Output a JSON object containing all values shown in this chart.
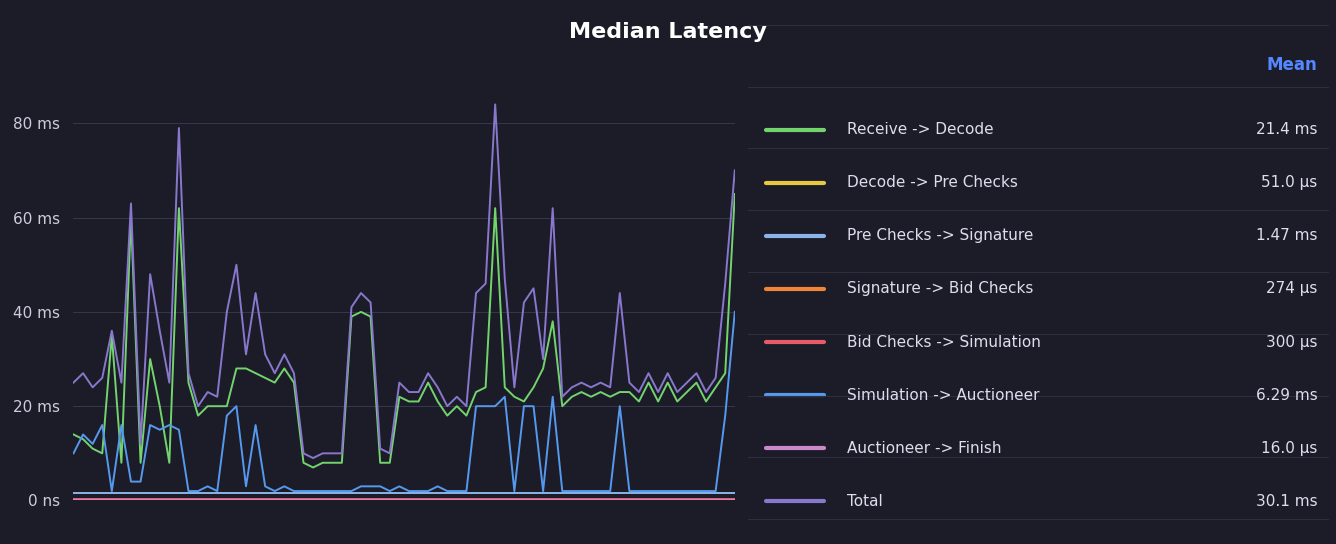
{
  "title": "Median Latency",
  "background_color": "#1c1c28",
  "plot_bg_color": "#1c1c28",
  "legend_bg_color": "#22222e",
  "title_color": "#ffffff",
  "grid_color": "#3a3a52",
  "tick_label_color": "#ccccdd",
  "mean_label_color": "#5588ff",
  "legend_text_color": "#ddddee",
  "legend_row_sep_color": "#2e2e3e",
  "ylim": [
    0,
    90
  ],
  "yticks": [
    0,
    20,
    40,
    60,
    80
  ],
  "ytick_labels": [
    "0 ns",
    "20 ms",
    "40 ms",
    "60 ms",
    "80 ms"
  ],
  "n_xgrid": 5,
  "series": [
    {
      "label": "Receive -> Decode",
      "mean": "21.4 ms",
      "color": "#73d46e",
      "linewidth": 1.4,
      "values": [
        14,
        13,
        11,
        10,
        35,
        8,
        60,
        8,
        30,
        20,
        8,
        62,
        25,
        18,
        20,
        20,
        20,
        28,
        28,
        27,
        26,
        25,
        28,
        25,
        8,
        7,
        8,
        8,
        8,
        39,
        40,
        39,
        8,
        8,
        22,
        21,
        21,
        25,
        21,
        18,
        20,
        18,
        23,
        24,
        62,
        24,
        22,
        21,
        24,
        28,
        38,
        20,
        22,
        23,
        22,
        23,
        22,
        23,
        23,
        21,
        25,
        21,
        25,
        21,
        23,
        25,
        21,
        24,
        27,
        65
      ]
    },
    {
      "label": "Decode -> Pre Checks",
      "mean": "51.0 μs",
      "color": "#e8c840",
      "linewidth": 1.4,
      "values": [
        0.05,
        0.05,
        0.05,
        0.05,
        0.05,
        0.05,
        0.05,
        0.05,
        0.05,
        0.05,
        0.05,
        0.05,
        0.05,
        0.05,
        0.05,
        0.05,
        0.05,
        0.05,
        0.05,
        0.05,
        0.05,
        0.05,
        0.05,
        0.05,
        0.05,
        0.05,
        0.05,
        0.05,
        0.05,
        0.05,
        0.05,
        0.05,
        0.05,
        0.05,
        0.05,
        0.05,
        0.05,
        0.05,
        0.05,
        0.05,
        0.05,
        0.05,
        0.05,
        0.05,
        0.05,
        0.05,
        0.05,
        0.05,
        0.05,
        0.05,
        0.05,
        0.05,
        0.05,
        0.05,
        0.05,
        0.05,
        0.05,
        0.05,
        0.05,
        0.05,
        0.05,
        0.05,
        0.05,
        0.05,
        0.05,
        0.05,
        0.05,
        0.05,
        0.05,
        0.05
      ]
    },
    {
      "label": "Pre Checks -> Signature",
      "mean": "1.47 ms",
      "color": "#8ab4e8",
      "linewidth": 1.4,
      "values": [
        1.5,
        1.5,
        1.5,
        1.5,
        1.5,
        1.5,
        1.5,
        1.5,
        1.5,
        1.5,
        1.5,
        1.5,
        1.5,
        1.5,
        1.5,
        1.5,
        1.5,
        1.5,
        1.5,
        1.5,
        1.5,
        1.5,
        1.5,
        1.5,
        1.5,
        1.5,
        1.5,
        1.5,
        1.5,
        1.5,
        1.5,
        1.5,
        1.5,
        1.5,
        1.5,
        1.5,
        1.5,
        1.5,
        1.5,
        1.5,
        1.5,
        1.5,
        1.5,
        1.5,
        1.5,
        1.5,
        1.5,
        1.5,
        1.5,
        1.5,
        1.5,
        1.5,
        1.5,
        1.5,
        1.5,
        1.5,
        1.5,
        1.5,
        1.5,
        1.5,
        1.5,
        1.5,
        1.5,
        1.5,
        1.5,
        1.5,
        1.5,
        1.5,
        1.5,
        1.5
      ]
    },
    {
      "label": "Signature -> Bid Checks",
      "mean": "274 μs",
      "color": "#f0853a",
      "linewidth": 1.4,
      "values": [
        0.27,
        0.27,
        0.27,
        0.27,
        0.27,
        0.27,
        0.27,
        0.27,
        0.27,
        0.27,
        0.27,
        0.27,
        0.27,
        0.27,
        0.27,
        0.27,
        0.27,
        0.27,
        0.27,
        0.27,
        0.27,
        0.27,
        0.27,
        0.27,
        0.27,
        0.27,
        0.27,
        0.27,
        0.27,
        0.27,
        0.27,
        0.27,
        0.27,
        0.27,
        0.27,
        0.27,
        0.27,
        0.27,
        0.27,
        0.27,
        0.27,
        0.27,
        0.27,
        0.27,
        0.27,
        0.27,
        0.27,
        0.27,
        0.27,
        0.27,
        0.27,
        0.27,
        0.27,
        0.27,
        0.27,
        0.27,
        0.27,
        0.27,
        0.27,
        0.27,
        0.27,
        0.27,
        0.27,
        0.27,
        0.27,
        0.27,
        0.27,
        0.27,
        0.27,
        0.27
      ]
    },
    {
      "label": "Bid Checks -> Simulation",
      "mean": "300 μs",
      "color": "#e85a6a",
      "linewidth": 1.4,
      "values": [
        0.3,
        0.3,
        0.3,
        0.3,
        0.3,
        0.3,
        0.3,
        0.3,
        0.3,
        0.3,
        0.3,
        0.3,
        0.3,
        0.3,
        0.3,
        0.3,
        0.3,
        0.3,
        0.3,
        0.3,
        0.3,
        0.3,
        0.3,
        0.3,
        0.3,
        0.3,
        0.3,
        0.3,
        0.3,
        0.3,
        0.3,
        0.3,
        0.3,
        0.3,
        0.3,
        0.3,
        0.3,
        0.3,
        0.3,
        0.3,
        0.3,
        0.3,
        0.3,
        0.3,
        0.3,
        0.3,
        0.3,
        0.3,
        0.3,
        0.3,
        0.3,
        0.3,
        0.3,
        0.3,
        0.3,
        0.3,
        0.3,
        0.3,
        0.3,
        0.3,
        0.3,
        0.3,
        0.3,
        0.3,
        0.3,
        0.3,
        0.3,
        0.3,
        0.3,
        0.3
      ]
    },
    {
      "label": "Simulation -> Auctioneer",
      "mean": "6.29 ms",
      "color": "#5599ee",
      "linewidth": 1.4,
      "values": [
        10,
        14,
        12,
        16,
        2,
        16,
        4,
        4,
        16,
        15,
        16,
        15,
        2,
        2,
        3,
        2,
        18,
        20,
        3,
        16,
        3,
        2,
        3,
        2,
        2,
        2,
        2,
        2,
        2,
        2,
        3,
        3,
        3,
        2,
        3,
        2,
        2,
        2,
        3,
        2,
        2,
        2,
        20,
        20,
        20,
        22,
        2,
        20,
        20,
        2,
        22,
        2,
        2,
        2,
        2,
        2,
        2,
        20,
        2,
        2,
        2,
        2,
        2,
        2,
        2,
        2,
        2,
        2,
        18,
        40
      ]
    },
    {
      "label": "Auctioneer -> Finish",
      "mean": "16.0 μs",
      "color": "#cc88cc",
      "linewidth": 1.4,
      "values": [
        0.016,
        0.016,
        0.016,
        0.016,
        0.016,
        0.016,
        0.016,
        0.016,
        0.016,
        0.016,
        0.016,
        0.016,
        0.016,
        0.016,
        0.016,
        0.016,
        0.016,
        0.016,
        0.016,
        0.016,
        0.016,
        0.016,
        0.016,
        0.016,
        0.016,
        0.016,
        0.016,
        0.016,
        0.016,
        0.016,
        0.016,
        0.016,
        0.016,
        0.016,
        0.016,
        0.016,
        0.016,
        0.016,
        0.016,
        0.016,
        0.016,
        0.016,
        0.016,
        0.016,
        0.016,
        0.016,
        0.016,
        0.016,
        0.016,
        0.016,
        0.016,
        0.016,
        0.016,
        0.016,
        0.016,
        0.016,
        0.016,
        0.016,
        0.016,
        0.016,
        0.016,
        0.016,
        0.016,
        0.016,
        0.016,
        0.016,
        0.016,
        0.016,
        0.016,
        0.016
      ]
    },
    {
      "label": "Total",
      "mean": "30.1 ms",
      "color": "#8877cc",
      "linewidth": 1.4,
      "values": [
        25,
        27,
        24,
        26,
        36,
        25,
        63,
        12,
        48,
        36,
        25,
        79,
        27,
        20,
        23,
        22,
        40,
        50,
        31,
        44,
        31,
        27,
        31,
        27,
        10,
        9,
        10,
        10,
        10,
        41,
        44,
        42,
        11,
        10,
        25,
        23,
        23,
        27,
        24,
        20,
        22,
        20,
        44,
        46,
        84,
        47,
        24,
        42,
        45,
        30,
        62,
        22,
        24,
        25,
        24,
        25,
        24,
        44,
        25,
        23,
        27,
        23,
        27,
        23,
        25,
        27,
        23,
        26,
        46,
        70
      ]
    }
  ]
}
